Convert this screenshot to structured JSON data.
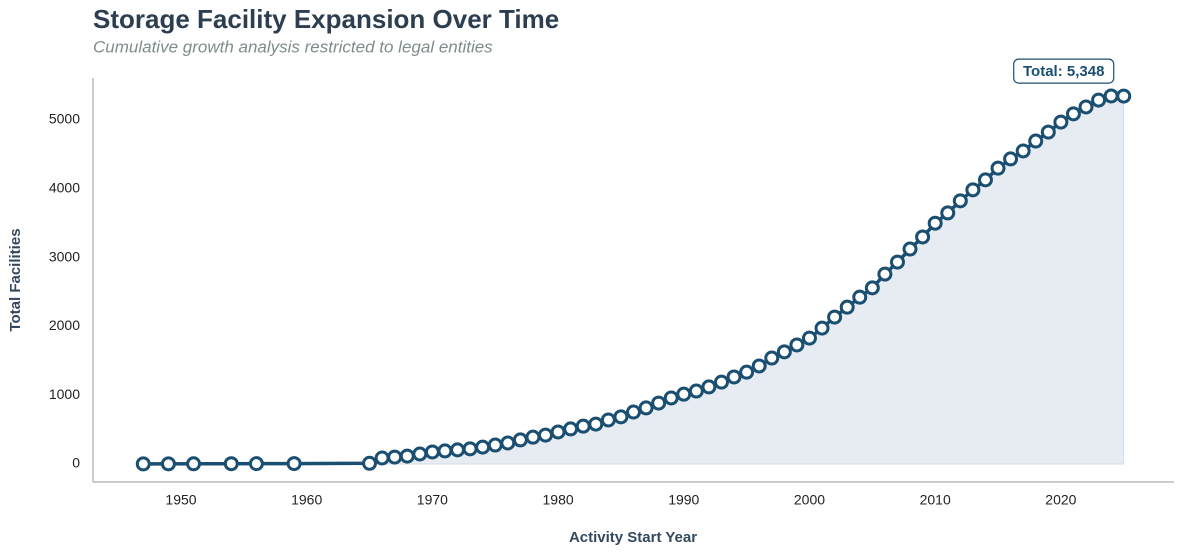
{
  "chart_data": {
    "type": "line",
    "title": "Storage Facility Expansion Over Time",
    "subtitle": "Cumulative growth analysis restricted to legal entities",
    "x_label": "Activity Start Year",
    "y_label": "Total Facilities",
    "annotation": "Total: 5,348",
    "x": [
      1947,
      1949,
      1951,
      1954,
      1956,
      1959,
      1965,
      1966,
      1967,
      1968,
      1969,
      1970,
      1971,
      1972,
      1973,
      1974,
      1975,
      1976,
      1977,
      1978,
      1979,
      1980,
      1981,
      1982,
      1983,
      1984,
      1985,
      1986,
      1987,
      1988,
      1989,
      1990,
      1991,
      1992,
      1993,
      1994,
      1995,
      1996,
      1997,
      1998,
      1999,
      2000,
      2001,
      2002,
      2003,
      2004,
      2005,
      2006,
      2007,
      2008,
      2009,
      2010,
      2011,
      2012,
      2013,
      2014,
      2015,
      2016,
      2017,
      2018,
      2019,
      2020,
      2021,
      2022,
      2023,
      2024,
      2025
    ],
    "series": [
      {
        "name": "Total Facilities",
        "color": "#1a4f72",
        "fill": "#e6ecf1",
        "values": [
          1,
          2,
          3,
          4,
          5,
          6,
          10,
          87,
          100,
          115,
          145,
          175,
          190,
          205,
          220,
          245,
          275,
          305,
          350,
          390,
          420,
          465,
          510,
          550,
          580,
          640,
          685,
          755,
          815,
          885,
          960,
          1015,
          1060,
          1120,
          1190,
          1265,
          1335,
          1425,
          1540,
          1630,
          1730,
          1830,
          1975,
          2135,
          2280,
          2425,
          2560,
          2760,
          2935,
          3125,
          3300,
          3500,
          3650,
          3825,
          3985,
          4130,
          4300,
          4435,
          4550,
          4695,
          4825,
          4970,
          5090,
          5190,
          5290,
          5350,
          5348
        ]
      }
    ],
    "xlim": [
      1943,
      2029
    ],
    "xticks": [
      1950,
      1960,
      1970,
      1980,
      1990,
      2000,
      2010,
      2020
    ],
    "ylim": [
      -262,
      5611
    ],
    "yticks": [
      0,
      1000,
      2000,
      3000,
      4000,
      5000
    ],
    "grid": false
  }
}
